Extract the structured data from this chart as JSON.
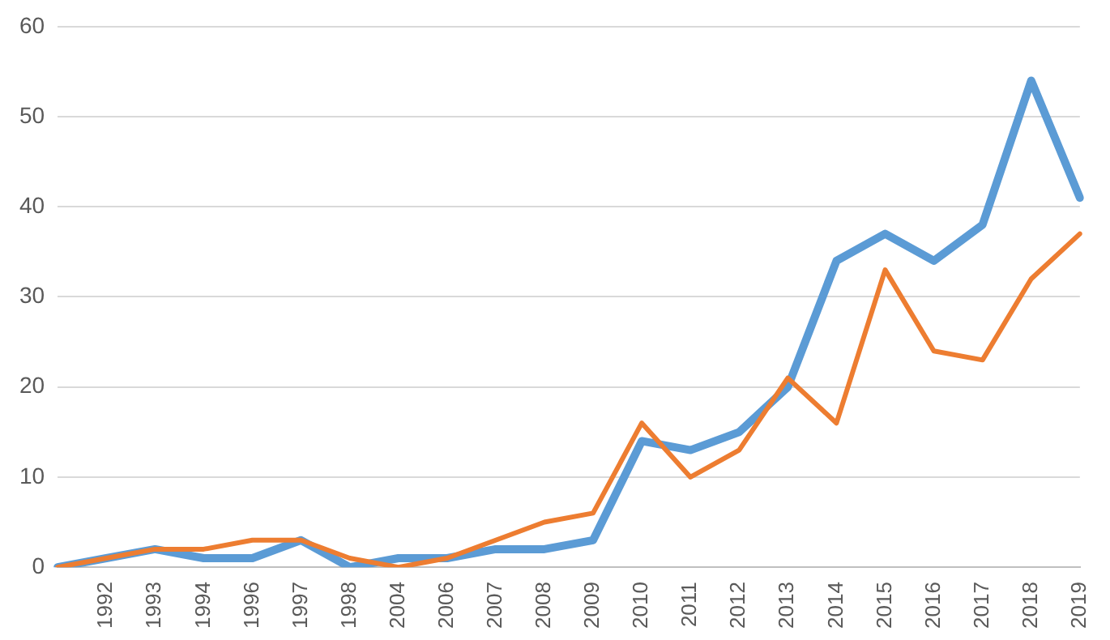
{
  "chart_data": {
    "type": "line",
    "categories": [
      null,
      "1992",
      "1993",
      "1994",
      "1996",
      "1997",
      "1998",
      "2004",
      "2006",
      "2007",
      "2008",
      "2009",
      "2010",
      "2011",
      "2012",
      "2013",
      "2014",
      "2015",
      "2016",
      "2017",
      "2018",
      "2019"
    ],
    "series": [
      {
        "color": "#5b9bd5",
        "values": [
          0,
          1,
          2,
          1,
          1,
          3,
          0,
          1,
          1,
          2,
          2,
          3,
          14,
          13,
          15,
          20,
          34,
          37,
          34,
          38,
          54,
          41
        ]
      },
      {
        "color": "#ed7d31",
        "values": [
          0,
          1,
          2,
          2,
          3,
          3,
          1,
          0,
          1,
          3,
          5,
          6,
          16,
          10,
          13,
          21,
          16,
          33,
          24,
          23,
          32,
          37
        ]
      }
    ],
    "ylim": [
      0,
      60
    ],
    "yticks": [
      0,
      10,
      20,
      30,
      40,
      50,
      60
    ],
    "grid": "y",
    "marker": "none",
    "line_style": "solid"
  }
}
